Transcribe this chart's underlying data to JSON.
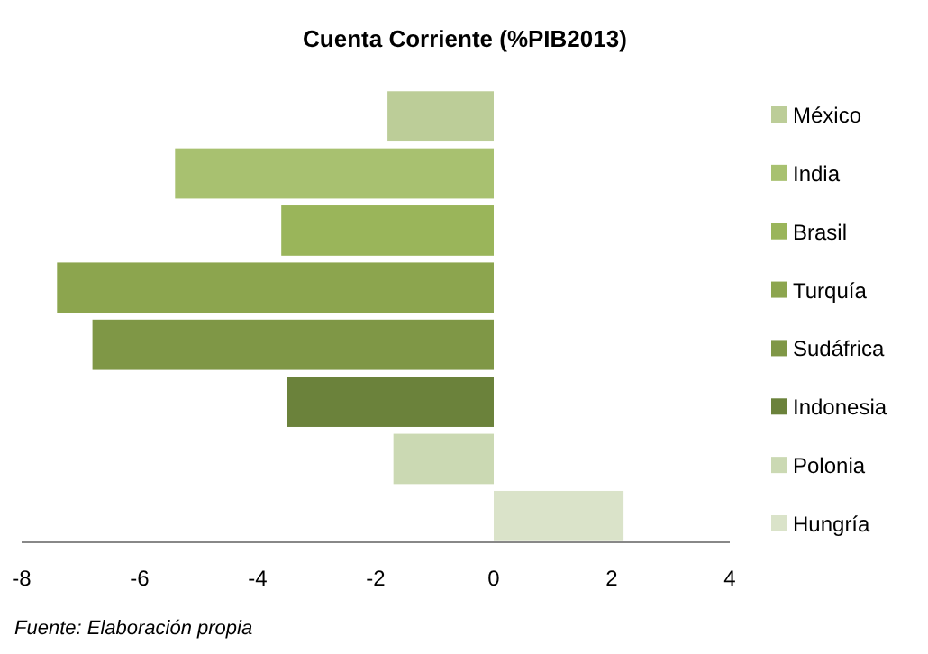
{
  "chart_data": {
    "type": "bar",
    "orientation": "horizontal",
    "stacked": true,
    "title": "Cuenta Corriente (%PIB2013)",
    "annotations": [
      "Fuente: Elaboración propia"
    ],
    "categories": [
      null,
      null,
      null,
      null,
      null,
      null,
      null,
      null
    ],
    "series": [
      {
        "name": "México",
        "color": "#bccd98",
        "values": [
          -1.8,
          null,
          null,
          null,
          null,
          null,
          null,
          null
        ]
      },
      {
        "name": "India",
        "color": "#a8c170",
        "values": [
          null,
          -5.4,
          null,
          null,
          null,
          null,
          null,
          null
        ]
      },
      {
        "name": "Brasil",
        "color": "#9ab55a",
        "values": [
          null,
          null,
          -3.6,
          null,
          null,
          null,
          null,
          null
        ]
      },
      {
        "name": "Turquía",
        "color": "#8ca54e",
        "values": [
          null,
          null,
          null,
          -7.4,
          null,
          null,
          null,
          null
        ]
      },
      {
        "name": "Sudáfrica",
        "color": "#7f9746",
        "values": [
          null,
          null,
          null,
          null,
          -6.8,
          null,
          null,
          null
        ]
      },
      {
        "name": "Indonesia",
        "color": "#6b823b",
        "values": [
          null,
          null,
          null,
          null,
          null,
          -3.5,
          null,
          null
        ]
      },
      {
        "name": "Polonia",
        "color": "#cbd9b3",
        "values": [
          null,
          null,
          null,
          null,
          null,
          null,
          -1.7,
          null
        ]
      },
      {
        "name": "Hungría",
        "color": "#dae3c9",
        "values": [
          null,
          null,
          null,
          null,
          null,
          null,
          null,
          2.2
        ]
      }
    ],
    "xlim": [
      -8,
      4
    ],
    "xticks": [
      -8,
      -6,
      -4,
      -2,
      0,
      2,
      4
    ],
    "tick_labels": "x",
    "grid": false,
    "legend": "right"
  }
}
